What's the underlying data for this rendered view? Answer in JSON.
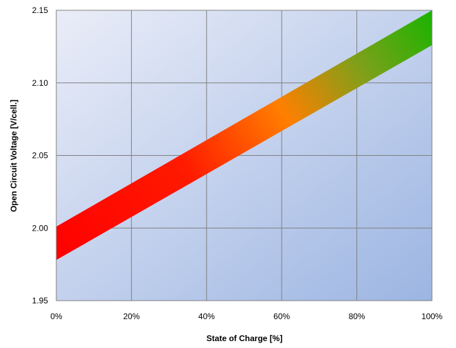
{
  "chart_data": {
    "type": "area",
    "title": "",
    "xlabel": "State of Charge [%]",
    "ylabel": "Open Circuit Voltage [V/cell.]",
    "xlim": [
      0,
      100
    ],
    "ylim": [
      1.95,
      2.15
    ],
    "x_ticks": [
      0,
      20,
      40,
      60,
      80,
      100
    ],
    "x_tick_labels": [
      "0%",
      "20%",
      "40%",
      "60%",
      "80%",
      "100%"
    ],
    "y_ticks": [
      1.95,
      2.0,
      2.05,
      2.1,
      2.15
    ],
    "y_tick_labels": [
      "1.95",
      "2.00",
      "2.05",
      "2.10",
      "2.15"
    ],
    "grid": true,
    "band": {
      "x": [
        0,
        100
      ],
      "upper": [
        2.001,
        2.15
      ],
      "lower": [
        1.978,
        2.126
      ],
      "color_stops": [
        {
          "at": 0.0,
          "color": "#ff0000"
        },
        {
          "at": 0.35,
          "color": "#ff1a00"
        },
        {
          "at": 0.6,
          "color": "#ff7f00"
        },
        {
          "at": 0.8,
          "color": "#7da01a"
        },
        {
          "at": 1.0,
          "color": "#19b400"
        }
      ]
    },
    "background_colors": [
      "#eaedf8",
      "#9cb5e2"
    ]
  }
}
